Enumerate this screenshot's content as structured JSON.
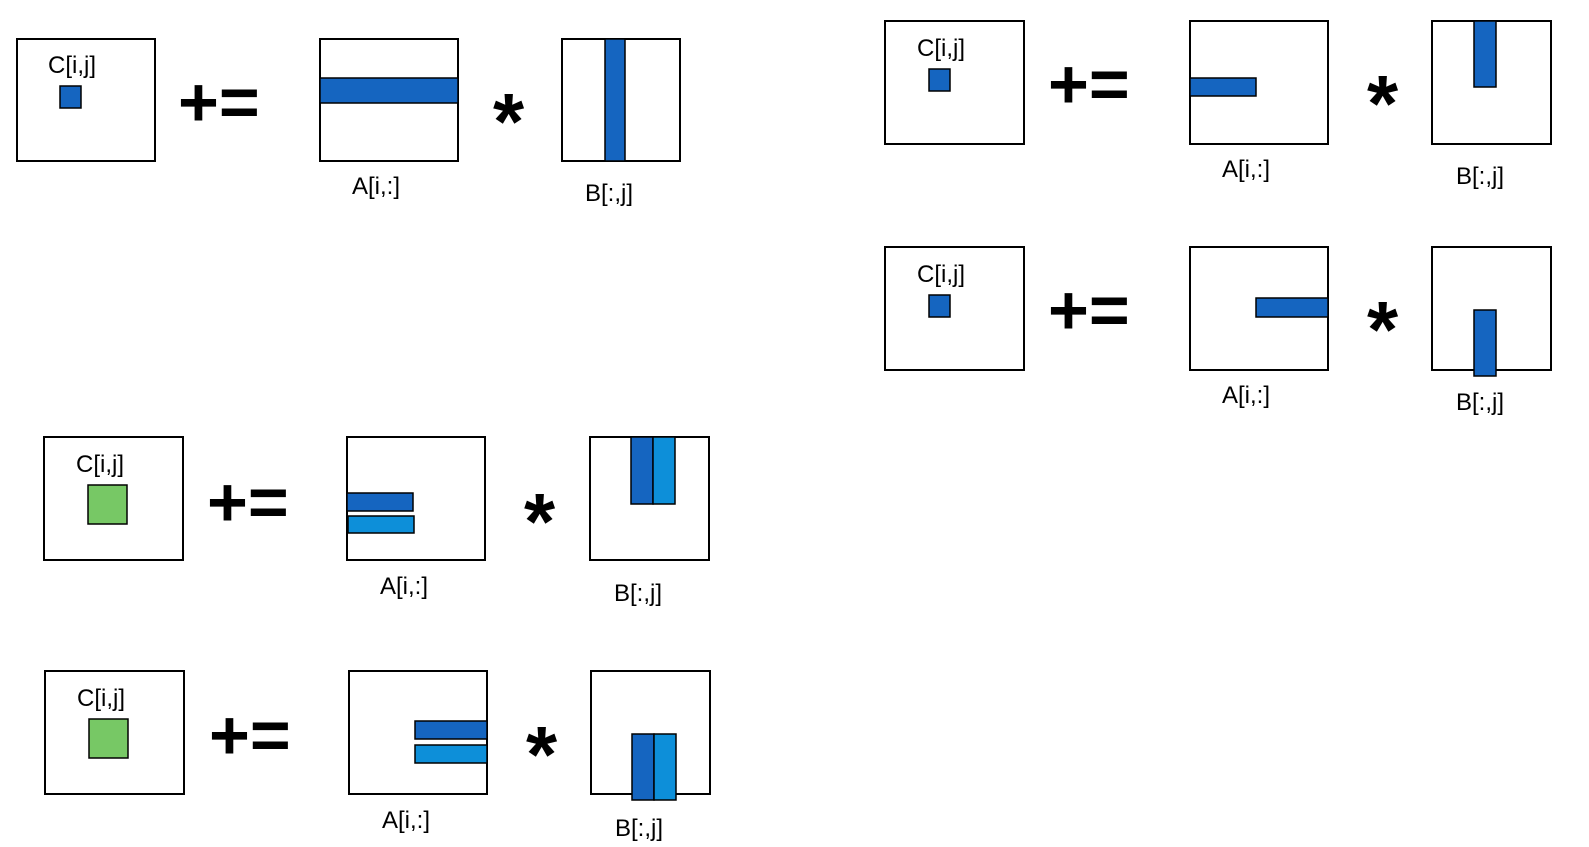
{
  "labels": {
    "c": "C[i,j]",
    "a": "A[i,:]",
    "b": "B[:,j]"
  },
  "operators": {
    "accumulate": "+=",
    "multiply": "*"
  },
  "colors": {
    "dark_blue": "#1565C0",
    "light_blue": "#0D8FD9",
    "green": "#77C865",
    "outline": "#000000",
    "background": "#ffffff"
  }
}
